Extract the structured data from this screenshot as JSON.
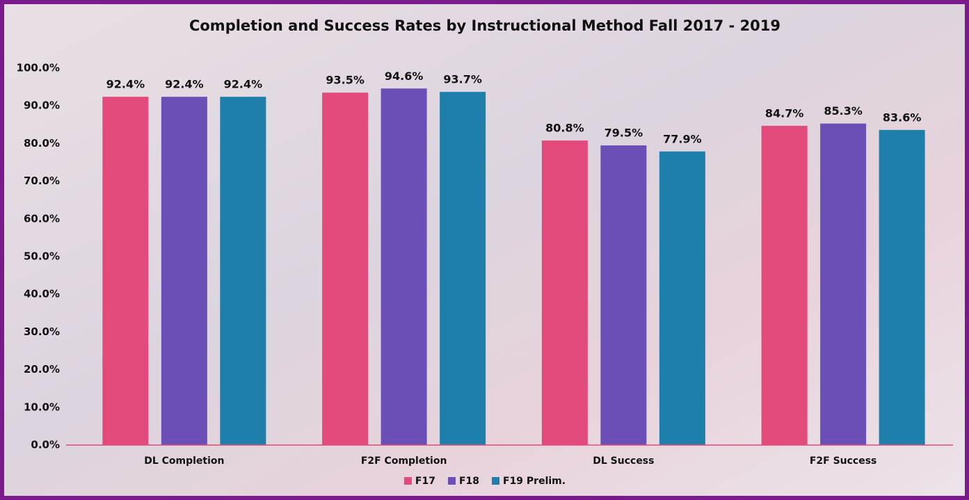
{
  "chart_data": {
    "type": "bar",
    "title": "Completion and Success Rates by Instructional Method Fall 2017 - 2019",
    "categories": [
      "DL Completion",
      "F2F Completion",
      "DL Success",
      "F2F Success"
    ],
    "series": [
      {
        "name": "F17",
        "color": "#e24a7b",
        "values": [
          92.4,
          93.5,
          80.8,
          84.7
        ],
        "value_labels": [
          "92.4%",
          "93.5%",
          "80.8%",
          "84.7%"
        ]
      },
      {
        "name": "F18",
        "color": "#6a4fb6",
        "values": [
          92.4,
          94.6,
          79.5,
          85.3
        ],
        "value_labels": [
          "92.4%",
          "94.6%",
          "79.5%",
          "85.3%"
        ]
      },
      {
        "name": "F19 Prelim.",
        "color": "#1f7fab",
        "values": [
          92.4,
          93.7,
          77.9,
          83.6
        ],
        "value_labels": [
          "92.4%",
          "93.7%",
          "77.9%",
          "83.6%"
        ]
      }
    ],
    "ylim": [
      0,
      100
    ],
    "yticks": [
      {
        "value": 0,
        "label": "0.0%"
      },
      {
        "value": 10,
        "label": "10.0%"
      },
      {
        "value": 20,
        "label": "20.0%"
      },
      {
        "value": 30,
        "label": "30.0%"
      },
      {
        "value": 40,
        "label": "40.0%"
      },
      {
        "value": 50,
        "label": "50.0%"
      },
      {
        "value": 60,
        "label": "60.0%"
      },
      {
        "value": 70,
        "label": "70.0%"
      },
      {
        "value": 80,
        "label": "80.0%"
      },
      {
        "value": 90,
        "label": "90.0%"
      },
      {
        "value": 100,
        "label": "100.0%"
      }
    ],
    "grid": false,
    "legend": "bottom"
  }
}
